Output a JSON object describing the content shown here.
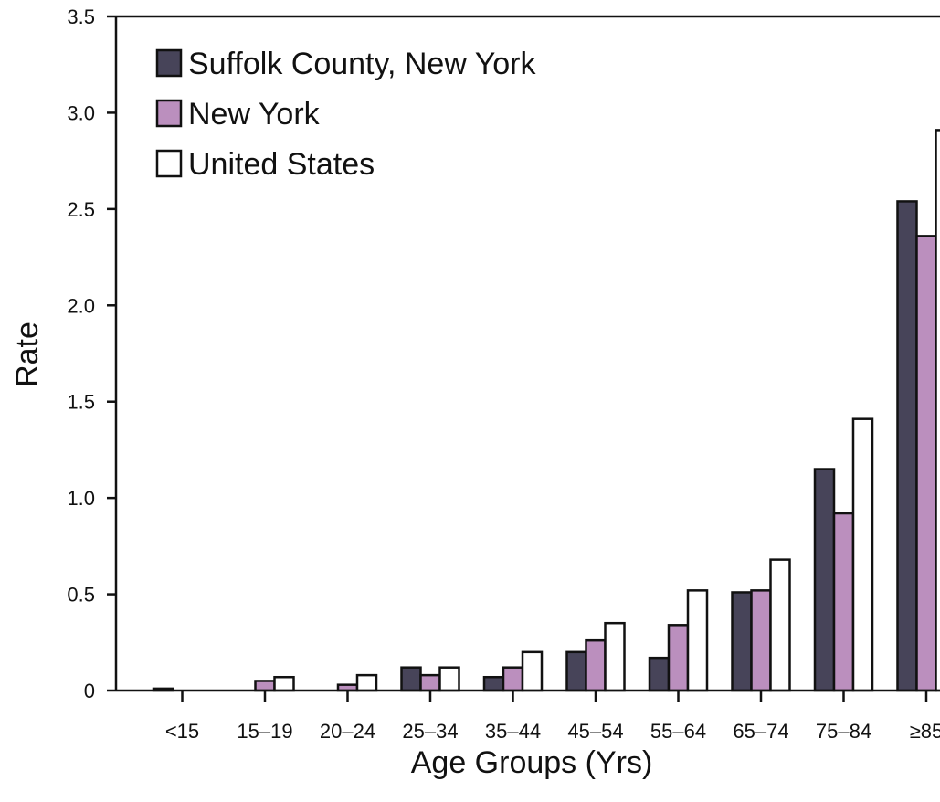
{
  "chart_data": {
    "type": "bar",
    "title": "",
    "xlabel": "Age Groups (Yrs)",
    "ylabel": "Rate",
    "categories": [
      "<15",
      "15–19",
      "20–24",
      "25–34",
      "35–44",
      "45–54",
      "55–64",
      "65–74",
      "75–84",
      "≥85"
    ],
    "series": [
      {
        "name": "Suffolk County, New York",
        "color": "#474459",
        "values": [
          0.01,
          0.0,
          0.0,
          0.12,
          0.07,
          0.2,
          0.17,
          0.51,
          1.15,
          2.54
        ]
      },
      {
        "name": "New York",
        "color": "#bb8fbe",
        "values": [
          0.0,
          0.05,
          0.03,
          0.08,
          0.12,
          0.26,
          0.34,
          0.52,
          0.92,
          2.36
        ]
      },
      {
        "name": "United States",
        "color": "#ffffff",
        "values": [
          0.0,
          0.07,
          0.08,
          0.12,
          0.2,
          0.35,
          0.52,
          0.68,
          1.41,
          2.91
        ]
      }
    ],
    "yticks": [
      "0",
      "0.5",
      "1.0",
      "1.5",
      "2.0",
      "2.5",
      "3.0",
      "3.5"
    ],
    "ylim": [
      0,
      3.5
    ],
    "grid": false,
    "legend_position": "top-left"
  }
}
